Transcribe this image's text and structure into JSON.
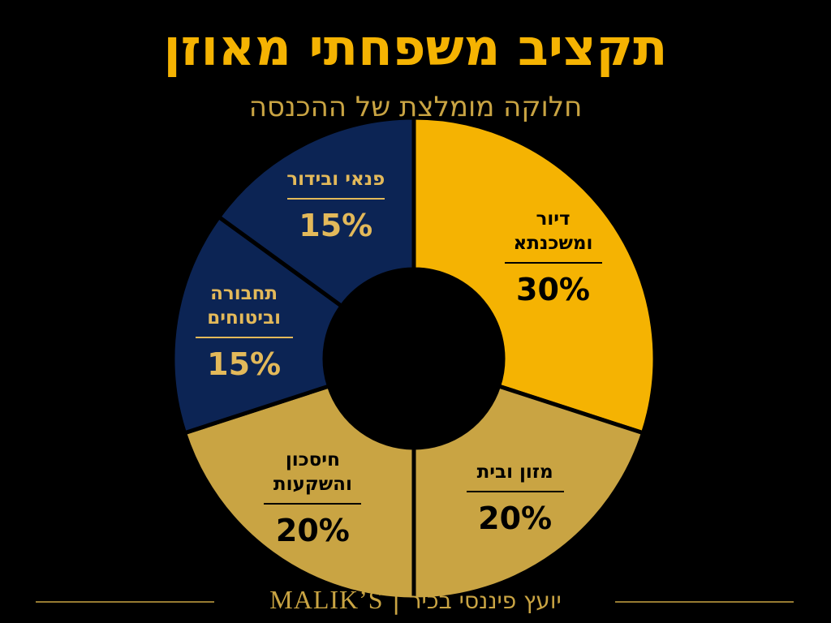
{
  "chart_data": {
    "type": "pie",
    "title": "תקציב משפחתי מאוזן",
    "subtitle": "חלוקה מומלצת של ההכנסה",
    "categories": [
      "דיור ומשכנתא",
      "מזון ובית",
      "חיסכון והשקעות",
      "תחבורה וביטוחים",
      "פנאי ובידור"
    ],
    "values": [
      30,
      20,
      20,
      15,
      15
    ],
    "value_labels": [
      "30%",
      "20%",
      "20%",
      "15%",
      "15%"
    ],
    "colors": [
      "#f5b302",
      "#c9a443",
      "#c9a443",
      "#0c2454",
      "#0c2454"
    ],
    "footer": {
      "brand": "MALIK’S",
      "tagline": "יועץ פיננסי בכיר"
    }
  }
}
